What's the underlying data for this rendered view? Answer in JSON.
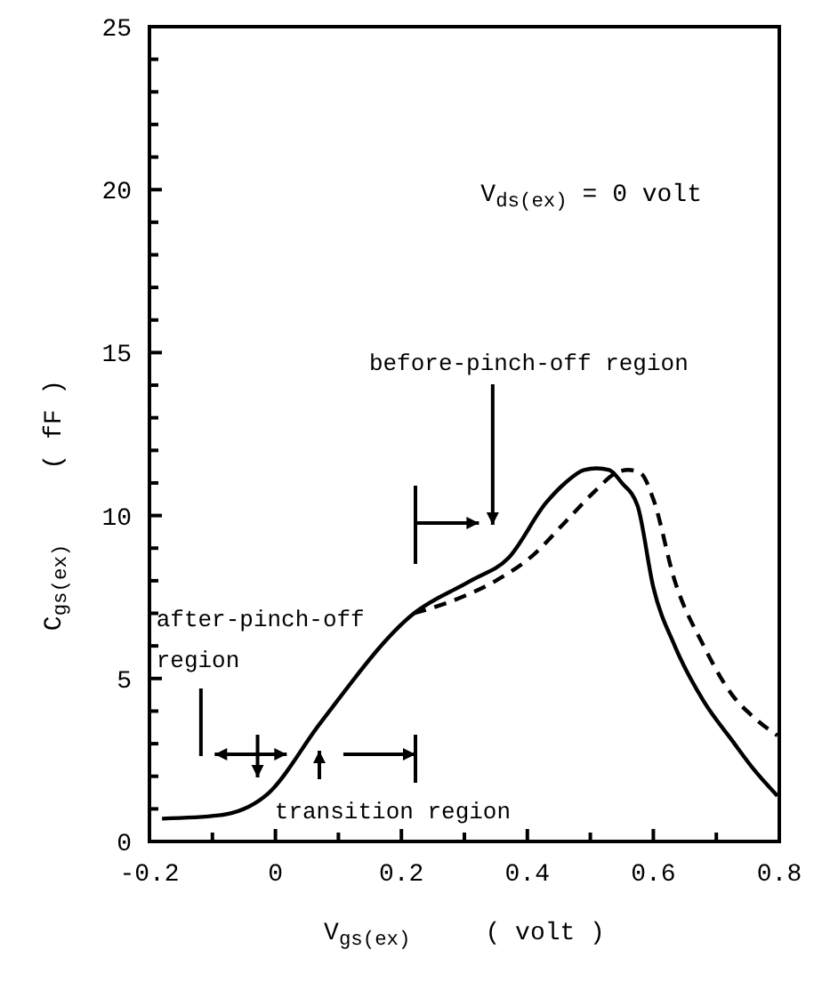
{
  "chart_data": {
    "type": "line",
    "xlabel": "V$_{gs(ex)}$     ( volt )",
    "ylabel": "C$_{gs(ex)}$     ( fF )",
    "xlim": [
      -0.2,
      0.8
    ],
    "ylim": [
      0,
      25
    ],
    "xticks": [
      -0.2,
      {
        "value": -0.1,
        "label": null
      },
      0,
      {
        "value": 0.1,
        "label": null
      },
      0.2,
      {
        "value": 0.3,
        "label": null
      },
      0.4,
      {
        "value": 0.5,
        "label": null
      },
      0.6,
      {
        "value": 0.7,
        "label": null
      },
      0.8
    ],
    "yticks": [
      0,
      {
        "value": 1,
        "label": null
      },
      {
        "value": 2,
        "label": null
      },
      {
        "value": 3,
        "label": null
      },
      {
        "value": 4,
        "label": null
      },
      5,
      {
        "value": 6,
        "label": null
      },
      {
        "value": 7,
        "label": null
      },
      {
        "value": 8,
        "label": null
      },
      {
        "value": 9,
        "label": null
      },
      10,
      {
        "value": 11,
        "label": null
      },
      {
        "value": 12,
        "label": null
      },
      {
        "value": 13,
        "label": null
      },
      {
        "value": 14,
        "label": null
      },
      15,
      {
        "value": 16,
        "label": null
      },
      {
        "value": 17,
        "label": null
      },
      {
        "value": 18,
        "label": null
      },
      {
        "value": 19,
        "label": null
      },
      20,
      {
        "value": 21,
        "label": null
      },
      {
        "value": 22,
        "label": null
      },
      {
        "value": 23,
        "label": null
      },
      {
        "value": 24,
        "label": null
      },
      25
    ],
    "grid": false,
    "marker": "none",
    "series": [
      {
        "color": "#000000",
        "line_style": "solid",
        "x": [
          -0.18,
          -0.09,
          -0.01,
          0.07,
          0.22,
          0.31,
          0.37,
          0.43,
          0.46,
          0.49,
          0.51,
          0.53,
          0.55,
          0.575,
          0.6,
          0.634,
          0.68,
          0.725,
          0.76,
          0.797
        ],
        "values": [
          0.7,
          0.8,
          1.5,
          3.6,
          7.0,
          8.0,
          8.7,
          10.4,
          11.0,
          11.4,
          11.45,
          11.4,
          11.0,
          10.3,
          7.8,
          6.0,
          4.3,
          3.1,
          2.2,
          1.4
        ]
      },
      {
        "color": "#000000",
        "line_style": "dashed",
        "x": [
          0.22,
          0.29,
          0.35,
          0.41,
          0.46,
          0.51,
          0.54,
          0.56,
          0.58,
          0.6,
          0.634,
          0.68,
          0.725,
          0.76,
          0.797
        ],
        "values": [
          7.0,
          7.45,
          8.0,
          8.8,
          9.8,
          10.8,
          11.3,
          11.4,
          11.3,
          10.5,
          8.0,
          6.0,
          4.5,
          3.8,
          3.25
        ]
      }
    ],
    "annotations": [
      "V$_{ds(ex)}$ = 0 volt",
      "before-pinch-off region",
      "after-pinch-off\nregion",
      "transition region"
    ]
  }
}
